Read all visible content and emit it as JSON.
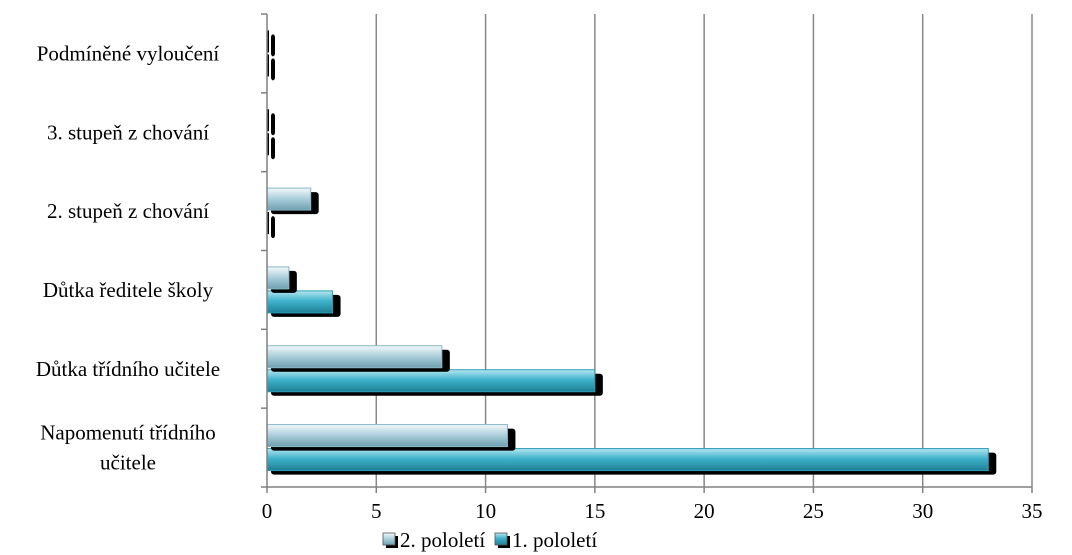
{
  "chart_data": {
    "type": "bar",
    "orientation": "horizontal",
    "categories": [
      "Napomenutí  třídního učitele",
      "Důtka třídního učitele",
      "Důtka ředitele školy",
      "2. stupeň z chování",
      "3. stupeň z chování",
      "Podmíněné vyloučení"
    ],
    "category_lines": [
      [
        "Napomenutí  třídního",
        "učitele"
      ],
      [
        "Důtka třídního učitele"
      ],
      [
        "Důtka ředitele školy"
      ],
      [
        "2. stupeň z chování"
      ],
      [
        "3. stupeň z chování"
      ],
      [
        "Podmíněné vyloučení"
      ]
    ],
    "series": [
      {
        "name": "1. pololetí",
        "values": [
          33,
          15,
          3,
          0,
          0,
          0
        ]
      },
      {
        "name": "2. pololetí",
        "values": [
          11,
          8,
          1,
          2,
          0,
          0
        ]
      }
    ],
    "xlim": [
      0,
      35
    ],
    "xticks": [
      0,
      5,
      10,
      15,
      20,
      25,
      30,
      35
    ],
    "grid": "vertical",
    "legend_position": "bottom",
    "legend_order": [
      "2. pololetí",
      "1. pololetí"
    ],
    "colors": {
      "series_1": "#2a9db5",
      "series_1_light": "#8fd6e6",
      "series_2": "#8ab7c6",
      "series_2_light": "#e3f1f5",
      "shadow": "#000000",
      "grid": "#888888",
      "axis": "#808080"
    }
  }
}
